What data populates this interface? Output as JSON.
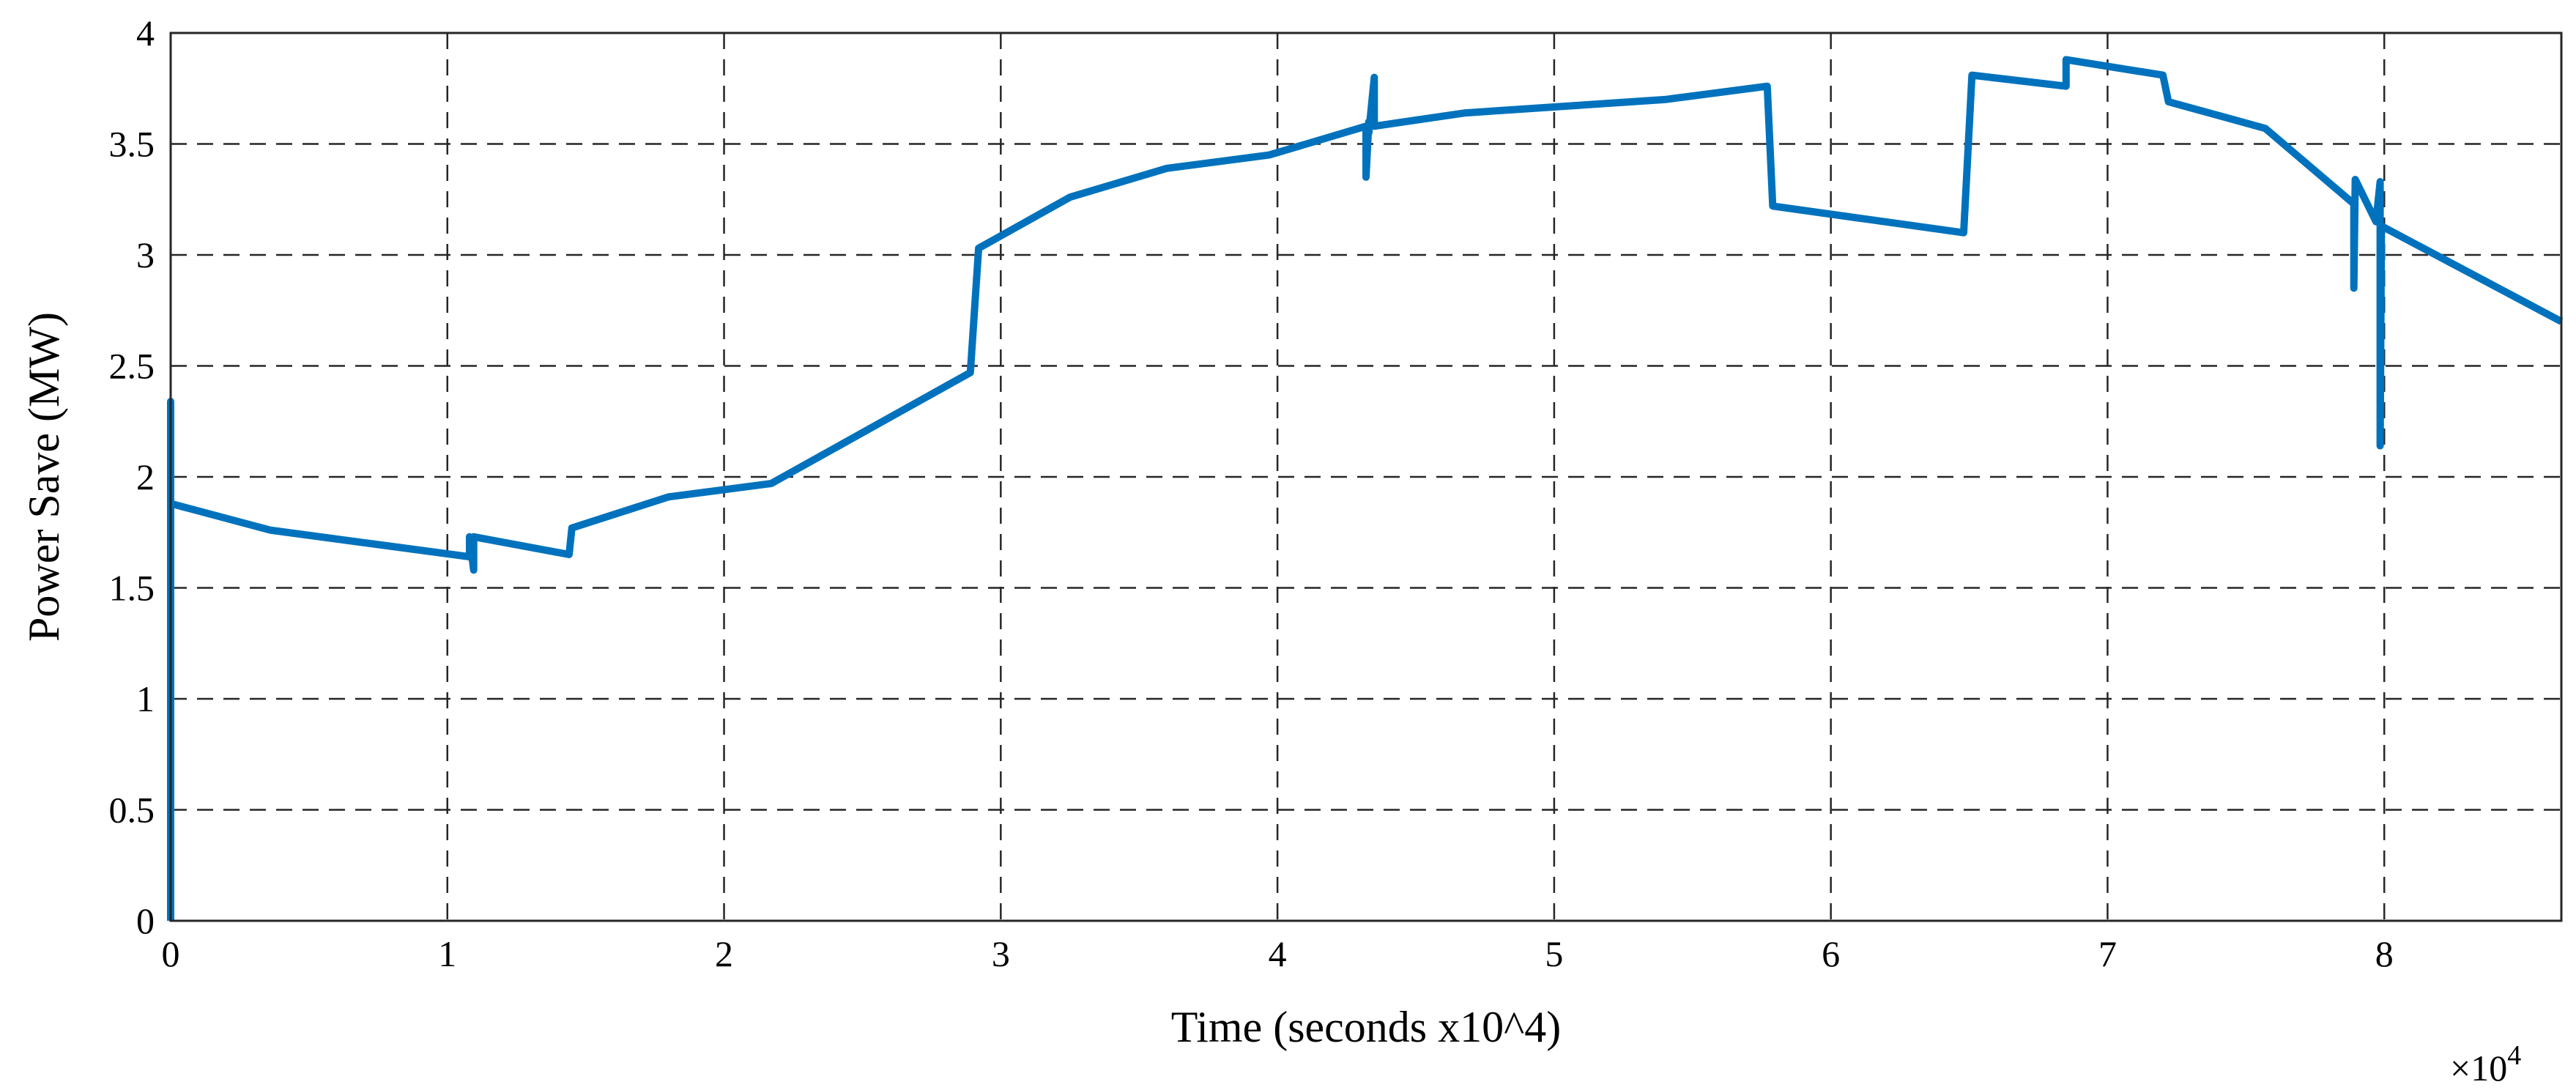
{
  "chart_data": {
    "type": "line",
    "xlabel": "Time (seconds x10^4)",
    "ylabel": "Power Save (MW)",
    "x_exponent": {
      "base": "×10",
      "power": "4"
    },
    "xlim": [
      0,
      86400
    ],
    "ylim": [
      0,
      4
    ],
    "xticks": [
      0,
      10000,
      20000,
      30000,
      40000,
      50000,
      60000,
      70000,
      80000
    ],
    "xtick_labels": [
      "0",
      "1",
      "2",
      "3",
      "4",
      "5",
      "6",
      "7",
      "8"
    ],
    "yticks": [
      0,
      0.5,
      1,
      1.5,
      2,
      2.5,
      3,
      3.5,
      4
    ],
    "ytick_labels": [
      "0",
      "0.5",
      "1",
      "1.5",
      "2",
      "2.5",
      "3",
      "3.5",
      "4"
    ],
    "grid": true,
    "line_color": "#0072BD",
    "series": [
      {
        "x": [
          0,
          0,
          0,
          0,
          3600,
          7200,
          10800,
          10800,
          10950,
          10950,
          14400,
          14500,
          18000,
          21700,
          28900,
          29200,
          32500,
          36000,
          39700,
          43200,
          43200,
          43300,
          43300,
          43500,
          43500,
          46800,
          50400,
          54000,
          57700,
          57900,
          64800,
          65100,
          68500,
          68500,
          72000,
          72200,
          75700,
          78900,
          78900,
          78950,
          79700,
          79850,
          79850,
          79900,
          86400
        ],
        "y": [
          0,
          2.34,
          1.88,
          1.88,
          1.76,
          1.7,
          1.64,
          1.73,
          1.58,
          1.73,
          1.65,
          1.77,
          1.91,
          1.97,
          2.47,
          3.03,
          3.26,
          3.39,
          3.45,
          3.58,
          3.35,
          3.6,
          3.55,
          3.8,
          3.58,
          3.64,
          3.67,
          3.7,
          3.76,
          3.22,
          3.1,
          3.81,
          3.76,
          3.88,
          3.81,
          3.69,
          3.57,
          3.23,
          2.85,
          3.34,
          3.15,
          3.33,
          2.14,
          3.13,
          2.7
        ]
      }
    ]
  }
}
